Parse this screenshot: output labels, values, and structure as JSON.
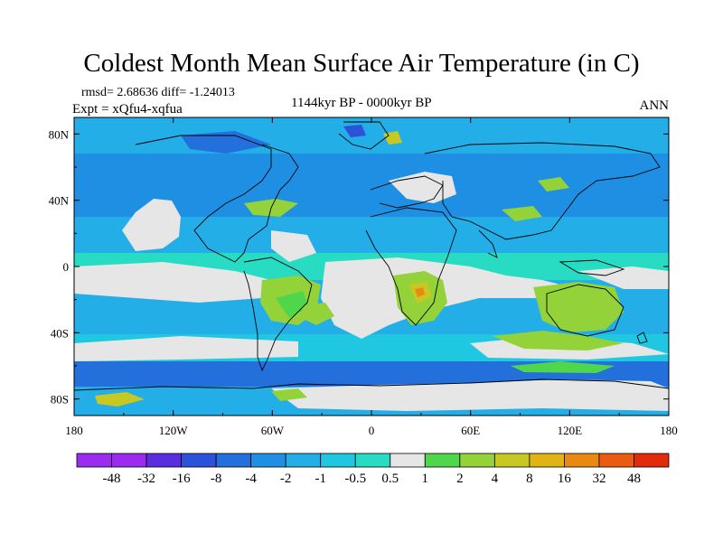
{
  "title": "Coldest Month Mean Surface Air Temperature (in C)",
  "stats": {
    "rmsd": "rmsd= 2.68636 diff= -1.24013",
    "expt": "Expt = xQfu4-xqfua"
  },
  "period": "1144kyr BP - 0000kyr BP",
  "season": "ANN",
  "axes": {
    "x_ticks": [
      "180",
      "120W",
      "60W",
      "0",
      "60E",
      "120E",
      "180"
    ],
    "y_ticks": [
      "80N",
      "40N",
      "0",
      "40S",
      "80S"
    ]
  },
  "colorbar": {
    "labels": [
      "-48",
      "-32",
      "-16",
      "-8",
      "-4",
      "-2",
      "-1",
      "-0.5",
      "0.5",
      "1",
      "2",
      "4",
      "8",
      "16",
      "32",
      "48"
    ],
    "colors": [
      "#9a2cf0",
      "#5a2de0",
      "#2b52d8",
      "#2370dc",
      "#1f8fe3",
      "#23aee8",
      "#1fc8e0",
      "#28dcc4",
      "#e6e6e6",
      "#4fd64a",
      "#94d23a",
      "#c8c823",
      "#e0b414",
      "#e88a12",
      "#ea5a10",
      "#e62e0e"
    ]
  },
  "palette": {
    "ocean_base": "#1f8fe3",
    "land_base": "#23aee8"
  }
}
